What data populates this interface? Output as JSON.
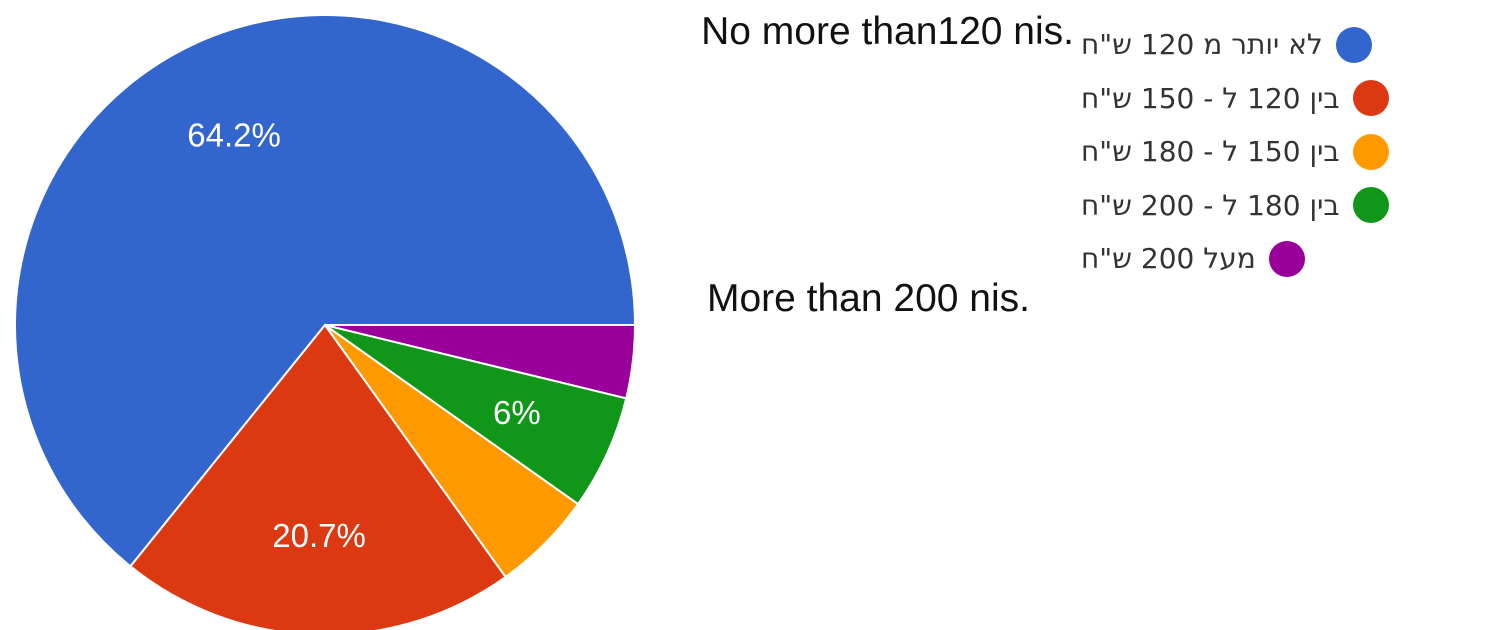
{
  "chart_data": {
    "type": "pie",
    "slices": [
      {
        "label": "לא יותר מ 120 ש\"ח",
        "value": 64.2,
        "value_label": "64.2%",
        "color": "#3366cc"
      },
      {
        "label": "בין 120 ל - 150 ש\"ח",
        "value": 20.7,
        "value_label": "20.7%",
        "color": "#dc3912"
      },
      {
        "label": "בין 150 ל - 180 ש\"ח",
        "value": 5.3,
        "value_label": "",
        "color": "#ff9900"
      },
      {
        "label": "בין 180 ל - 200 ש\"ח",
        "value": 6.0,
        "value_label": "6%",
        "color": "#109618"
      },
      {
        "label": "מעל 200 ש\"ח",
        "value": 3.8,
        "value_label": "",
        "color": "#990099"
      }
    ],
    "start_angle": "3 o'clock",
    "direction": "counter-clockwise",
    "legend_position": "right"
  },
  "annotations": [
    {
      "text": "No more than120 nis."
    },
    {
      "text": "More than 200 nis."
    }
  ]
}
